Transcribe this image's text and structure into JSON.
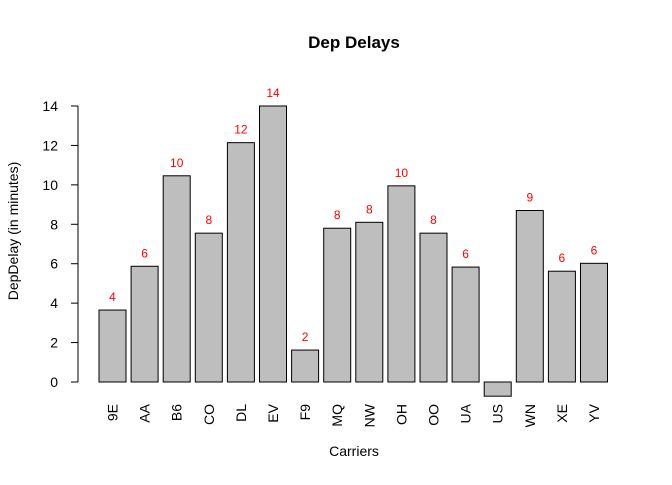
{
  "chart_data": {
    "type": "bar",
    "title": "Dep Delays",
    "xlabel": "Carriers",
    "ylabel": "DepDelay (in minutes)",
    "categories": [
      "9E",
      "AA",
      "B6",
      "CO",
      "DL",
      "EV",
      "F9",
      "MQ",
      "NW",
      "OH",
      "OO",
      "UA",
      "US",
      "WN",
      "XE",
      "YV"
    ],
    "values": [
      3.65,
      5.87,
      10.46,
      7.55,
      12.14,
      14.0,
      1.62,
      7.8,
      8.1,
      9.95,
      7.55,
      5.83,
      -0.72,
      8.7,
      5.62,
      6.02
    ],
    "data_labels": [
      "4",
      "6",
      "10",
      "8",
      "12",
      "14",
      "2",
      "8",
      "8",
      "10",
      "8",
      "6",
      "",
      "9",
      "6",
      "6"
    ],
    "yticks": [
      0,
      2,
      4,
      6,
      8,
      10,
      12,
      14
    ],
    "ylim": [
      0,
      14
    ],
    "grid": false,
    "colors": {
      "bar_fill": "#bebebe",
      "bar_stroke": "#000000",
      "data_label": "#ff0000",
      "axis": "#000000"
    }
  }
}
